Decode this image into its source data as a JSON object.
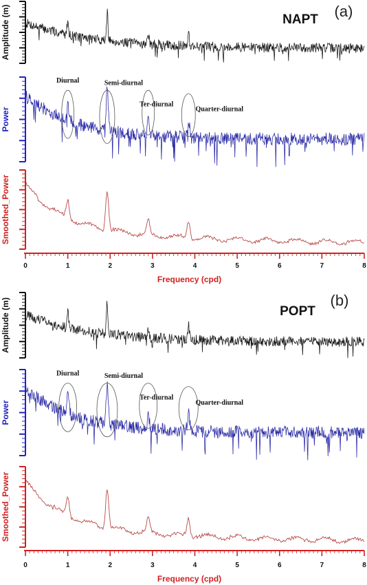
{
  "colors": {
    "amplitude": "#1a1a1a",
    "power": "#2c2ca8",
    "smoothed": "#b84a4a",
    "power_axis": "#2020c0",
    "smoothed_axis": "#d02020",
    "annotation": "#555555"
  },
  "chart_data": [
    {
      "panel": "(a)",
      "station": "NAPT",
      "type": "line",
      "xlabel": "Frequency (cpd)",
      "xlim": [
        0,
        8
      ],
      "x_ticks": [
        "0",
        "1",
        "2",
        "3",
        "4",
        "5",
        "6",
        "7",
        "8"
      ],
      "series": [
        {
          "name": "Amplitude (m)",
          "color": "#1a1a1a"
        },
        {
          "name": "Power",
          "color": "#2c2ca8"
        },
        {
          "name": "Smoothed_Power",
          "color": "#b84a4a"
        }
      ],
      "annotations": [
        {
          "text": "Diurnal",
          "x": 1.0
        },
        {
          "text": "Semi-diurnal",
          "x": 1.93
        },
        {
          "text": "Ter-diurnal",
          "x": 2.9
        },
        {
          "text": "Quarter-diurnal",
          "x": 3.85
        }
      ],
      "peaks": [
        1.0,
        1.93,
        2.9,
        3.85
      ]
    },
    {
      "panel": "(b)",
      "station": "POPT",
      "type": "line",
      "xlabel": "Frequency (cpd)",
      "xlim": [
        0,
        8
      ],
      "x_ticks": [
        "0",
        "1",
        "2",
        "3",
        "4",
        "5",
        "6",
        "7",
        "8"
      ],
      "series": [
        {
          "name": "Amplitude (m)",
          "color": "#1a1a1a"
        },
        {
          "name": "Power",
          "color": "#2c2ca8"
        },
        {
          "name": "Smoothed_Power",
          "color": "#b84a4a"
        }
      ],
      "annotations": [
        {
          "text": "Diurnal",
          "x": 1.0
        },
        {
          "text": "Semi-diurnal",
          "x": 1.93
        },
        {
          "text": "Ter-diurnal",
          "x": 2.9
        },
        {
          "text": "Quarter-diurnal",
          "x": 3.85
        }
      ],
      "peaks": [
        1.0,
        1.93,
        2.9,
        3.85
      ]
    }
  ]
}
